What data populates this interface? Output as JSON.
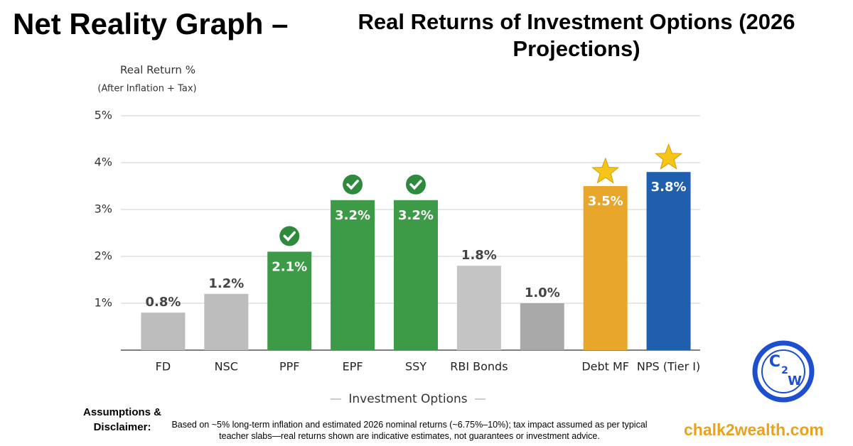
{
  "chart_data": {
    "type": "bar",
    "title": "Net Reality Graph –",
    "subtitle": "Real Returns of Investment Options (2026 Projections)",
    "y_label": "Real Return %",
    "y_label_note": "(After Inflation + Tax)",
    "x_label": "Investment Options",
    "categories": [
      "FD",
      "NSC",
      "PPF",
      "EPF",
      "SSY",
      "RBI Bonds",
      null,
      "Debt MF",
      "NPS (Tier I)"
    ],
    "values": [
      0.8,
      1.2,
      2.1,
      3.2,
      3.2,
      1.8,
      1.0,
      3.5,
      3.8
    ],
    "value_labels": [
      "0.8%",
      "1.2%",
      "2.1%",
      "3.2%",
      "3.2%",
      "1.8%",
      "1.0%",
      "3.5%",
      "3.8%"
    ],
    "colors": [
      "#bdbdbd",
      "#bdbdbd",
      "#3d9a47",
      "#3d9a47",
      "#3d9a47",
      "#c4c4c4",
      "#a9a9a9",
      "#e8a72a",
      "#1f5fae"
    ],
    "icons": [
      null,
      null,
      "check",
      "check",
      "check",
      null,
      null,
      "star",
      "star"
    ],
    "ylim": [
      0,
      5
    ],
    "yticks": [
      {
        "value": 1,
        "label": "1%"
      },
      {
        "value": 2,
        "label": "2%"
      },
      {
        "value": 3,
        "label": "3%"
      },
      {
        "value": 4,
        "label": "4%"
      },
      {
        "value": 5,
        "label": "5%"
      }
    ],
    "grid": true
  },
  "footer": {
    "heading": "Assumptions & Disclaimer:",
    "text": "Based on ~5% long-term inflation and estimated 2026 nominal returns (~6.75%–10%); tax impact assumed as per typical teacher slabs—real returns shown are indicative estimates, not guarantees or investment advice.",
    "brand": "chalk2wealth.com",
    "logo": [
      "C",
      "2",
      "W"
    ]
  }
}
